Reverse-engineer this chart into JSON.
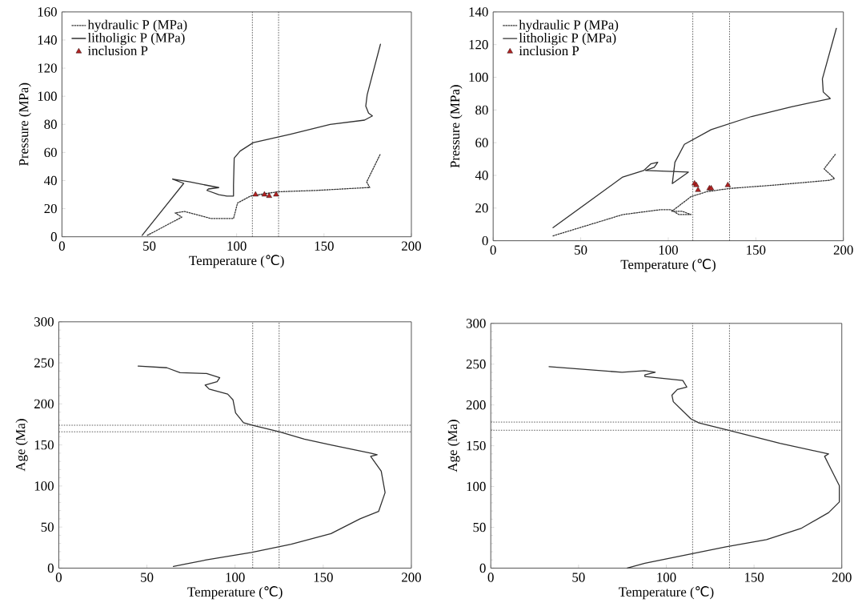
{
  "chart_data": [
    {
      "type": "line",
      "xlabel": "Temperature (℃)",
      "ylabel": "Pressure (MPa)",
      "xlim": [
        0,
        200
      ],
      "ylim": [
        0,
        160
      ],
      "xticks": [
        0,
        50,
        100,
        150,
        200
      ],
      "yticks": [
        0,
        20,
        40,
        60,
        80,
        100,
        120,
        140,
        160
      ],
      "legend": "top left",
      "series": [
        {
          "name": "hydraulic P (MPa)",
          "color": "#333333",
          "line_style": "dotted",
          "x": [
            48.9,
            68.6,
            64.8,
            70.2,
            85.3,
            98.2,
            100.5,
            108.0,
            123.2,
            145.9,
            174.7,
            176.2,
            174.4,
            182.3
          ],
          "values": [
            1,
            14,
            17,
            18,
            13,
            13,
            24,
            29,
            32,
            33,
            35,
            35,
            39,
            59
          ]
        },
        {
          "name": "litholigic P (MPa)",
          "color": "#303030",
          "line_style": "solid",
          "x": [
            45.9,
            69.7,
            63.3,
            73.2,
            89.8,
            83.8,
            83.0,
            89.8,
            94.4,
            98.2,
            98.2,
            98.6,
            102.0,
            109.5,
            130.8,
            153.5,
            173.2,
            177.7,
            175.5,
            173.9,
            174.7,
            182.3
          ],
          "values": [
            1,
            38,
            41,
            39,
            35,
            34,
            33,
            30,
            29,
            29,
            37,
            56,
            61,
            67,
            73,
            80,
            83,
            86,
            88,
            93,
            101,
            137
          ]
        },
        {
          "name": "inclusion P",
          "type": "scatter",
          "marker": "triangle",
          "color": "#b22222",
          "x": [
            110.8,
            115.9,
            118.6,
            122.6
          ],
          "values": [
            30,
            30,
            29,
            30
          ]
        }
      ],
      "ref_lines": [
        {
          "axis": "x",
          "value": 109,
          "line_style": "dotted"
        },
        {
          "axis": "x",
          "value": 124,
          "line_style": "dotted"
        }
      ]
    },
    {
      "type": "line",
      "xlabel": "Temperature (℃)",
      "ylabel": "Pressure (MPa)",
      "xlim": [
        0,
        200
      ],
      "ylim": [
        0,
        140
      ],
      "xticks": [
        0,
        50,
        100,
        150,
        200
      ],
      "yticks": [
        0,
        20,
        40,
        60,
        80,
        100,
        120,
        140
      ],
      "legend": "top left",
      "series": [
        {
          "name": "hydraulic P (MPa)",
          "color": "#333333",
          "line_style": "dotted",
          "x": [
            34.2,
            74.0,
            95.4,
            101.5,
            106.1,
            113.0,
            108.0,
            102.0,
            113.0,
            122.0,
            135.0,
            160.0,
            192.0,
            195.0,
            189.0,
            195.5
          ],
          "values": [
            3,
            16,
            19,
            19,
            16,
            16,
            18,
            18,
            27,
            30,
            32,
            34,
            37,
            38,
            44,
            53
          ]
        },
        {
          "name": "litholigic P (MPa)",
          "color": "#303030",
          "line_style": "solid",
          "x": [
            34.2,
            74.0,
            86.0,
            90.0,
            94.0,
            92.0,
            87.0,
            111.5,
            102.3,
            103.8,
            109.2,
            124.5,
            147.5,
            170.4,
            192.5,
            188.5,
            188.0,
            196.0
          ],
          "values": [
            8,
            39,
            43,
            47,
            48,
            45,
            43,
            42,
            35,
            48,
            59,
            68,
            76,
            82,
            87,
            91,
            99,
            130
          ]
        },
        {
          "name": "inclusion P",
          "type": "scatter",
          "marker": "triangle",
          "color": "#b22222",
          "x": [
            115.0,
            116.0,
            117.0,
            123.5,
            124.5,
            134.0
          ],
          "values": [
            35,
            34,
            31,
            32,
            32,
            34
          ]
        }
      ],
      "ref_lines": [
        {
          "axis": "x",
          "value": 114,
          "line_style": "dotted"
        },
        {
          "axis": "x",
          "value": 135,
          "line_style": "dotted"
        }
      ]
    },
    {
      "type": "line",
      "xlabel": "Temperature (℃)",
      "ylabel": "Age (Ma)",
      "xlim": [
        0,
        200
      ],
      "ylim": [
        0,
        300
      ],
      "xticks": [
        0,
        50,
        100,
        150,
        200
      ],
      "yticks": [
        0,
        50,
        100,
        150,
        200,
        250,
        300
      ],
      "series": [
        {
          "color": "#303030",
          "line_style": "solid",
          "x": [
            45.0,
            61.3,
            68.8,
            83.8,
            91.3,
            89.8,
            83.0,
            85.3,
            95.8,
            98.8,
            100.3,
            104.8,
            110.0,
            125.0,
            139.3,
            154.4,
            176.9,
            180.6,
            176.9,
            182.9,
            185.1,
            181.4,
            170.9,
            154.4,
            131.8,
            109.3,
            83.8,
            71.8,
            65.0
          ],
          "values": [
            246,
            244,
            238,
            237,
            232,
            227,
            223,
            218,
            212,
            205,
            189,
            177,
            174,
            166,
            157,
            150,
            140,
            138,
            136,
            118,
            92,
            69,
            60,
            42,
            29,
            19,
            10,
            5,
            2
          ]
        }
      ],
      "ref_lines": [
        {
          "axis": "x",
          "value": 110,
          "line_style": "dotted"
        },
        {
          "axis": "x",
          "value": 125,
          "line_style": "dotted"
        },
        {
          "axis": "y",
          "value": 174,
          "line_style": "dotted"
        },
        {
          "axis": "y",
          "value": 166,
          "line_style": "dotted"
        }
      ]
    },
    {
      "type": "line",
      "xlabel": "Temperature (℃)",
      "ylabel": "Age (Ma)",
      "xlim": [
        0,
        200
      ],
      "ylim": [
        0,
        300
      ],
      "xticks": [
        0,
        50,
        100,
        150,
        200
      ],
      "yticks": [
        0,
        50,
        100,
        150,
        200,
        250,
        300
      ],
      "series": [
        {
          "color": "#303030",
          "line_style": "solid",
          "x": [
            33.2,
            74.8,
            87.8,
            93.7,
            87.8,
            87.8,
            109.4,
            111.7,
            106.3,
            103.2,
            104.0,
            114.0,
            118.6,
            135.6,
            164.8,
            192.5,
            190.2,
            192.5,
            198.6,
            198.6,
            192.5,
            177.1,
            157.1,
            134.0,
            110.9,
            87.8,
            77.8
          ],
          "values": [
            247,
            240,
            242,
            240,
            237,
            235,
            230,
            222,
            219,
            212,
            204,
            183,
            178,
            169,
            153,
            140,
            137,
            127,
            101,
            81,
            68,
            49,
            35,
            26,
            16,
            6,
            0
          ]
        }
      ],
      "ref_lines": [
        {
          "axis": "x",
          "value": 115,
          "line_style": "dotted"
        },
        {
          "axis": "x",
          "value": 136,
          "line_style": "dotted"
        },
        {
          "axis": "y",
          "value": 179,
          "line_style": "dotted"
        },
        {
          "axis": "y",
          "value": 169,
          "line_style": "dotted"
        }
      ]
    }
  ]
}
